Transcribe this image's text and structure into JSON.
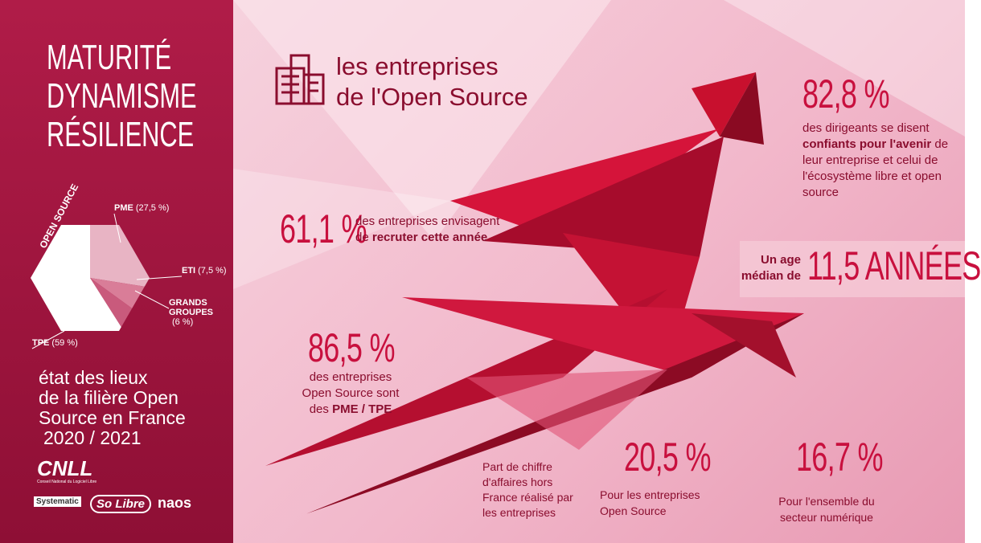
{
  "sidebar": {
    "title_lines": [
      "MATURITÉ",
      "DYNAMISME",
      "RÉSILIENCE"
    ],
    "subtitle_lines": [
      "état des lieux",
      "de la filière Open",
      "Source en France",
      "2020 / 2021"
    ],
    "logos": [
      "CNLL",
      "Conseil National du Logiciel Libre",
      "Systematic",
      "So Libre",
      "naos"
    ]
  },
  "chart_data": {
    "type": "pie",
    "title": "OPEN SOURCE",
    "categories": [
      "PME",
      "ETI",
      "GRANDS GROUPES",
      "TPE"
    ],
    "values": [
      27.5,
      7.5,
      6,
      59
    ],
    "value_labels": [
      "(27,5 %)",
      "(7,5 %)",
      "(6 %)",
      "(59 %)"
    ],
    "colors": [
      "#e8b4c4",
      "#d97d98",
      "#c95a7c",
      "#ffffff"
    ]
  },
  "header": {
    "title_lines": [
      "les entreprises",
      "de l'Open Source"
    ]
  },
  "stats": [
    {
      "value": "82,8 %",
      "parts": [
        {
          "t": "des dirigeants se disent "
        },
        {
          "t": "confiants pour l'avenir",
          "bold": true
        },
        {
          "t": " de leur entreprise et celui de l'écosystème libre et open source"
        }
      ]
    },
    {
      "value": "61,1 %",
      "parts": [
        {
          "t": "des entreprises envisagent de "
        },
        {
          "t": "recruter cette année",
          "bold": true
        }
      ]
    },
    {
      "value": "11,5 ANNÉES",
      "parts": [
        {
          "t": "Un age médian de",
          "bold": true
        }
      ]
    },
    {
      "value": "86,5 %",
      "parts": [
        {
          "t": "des entreprises Open Source sont des "
        },
        {
          "t": "PME / TPE",
          "bold": true
        }
      ]
    },
    {
      "value": "20,5 %",
      "parts": [
        {
          "t": "Pour les entreprises Open Source"
        }
      ]
    },
    {
      "value": "16,7 %",
      "parts": [
        {
          "t": "Pour l'ensemble  du secteur numérique"
        }
      ]
    }
  ],
  "caption": "Part de chiffre d'affaires hors France réalisé par les entreprises"
}
